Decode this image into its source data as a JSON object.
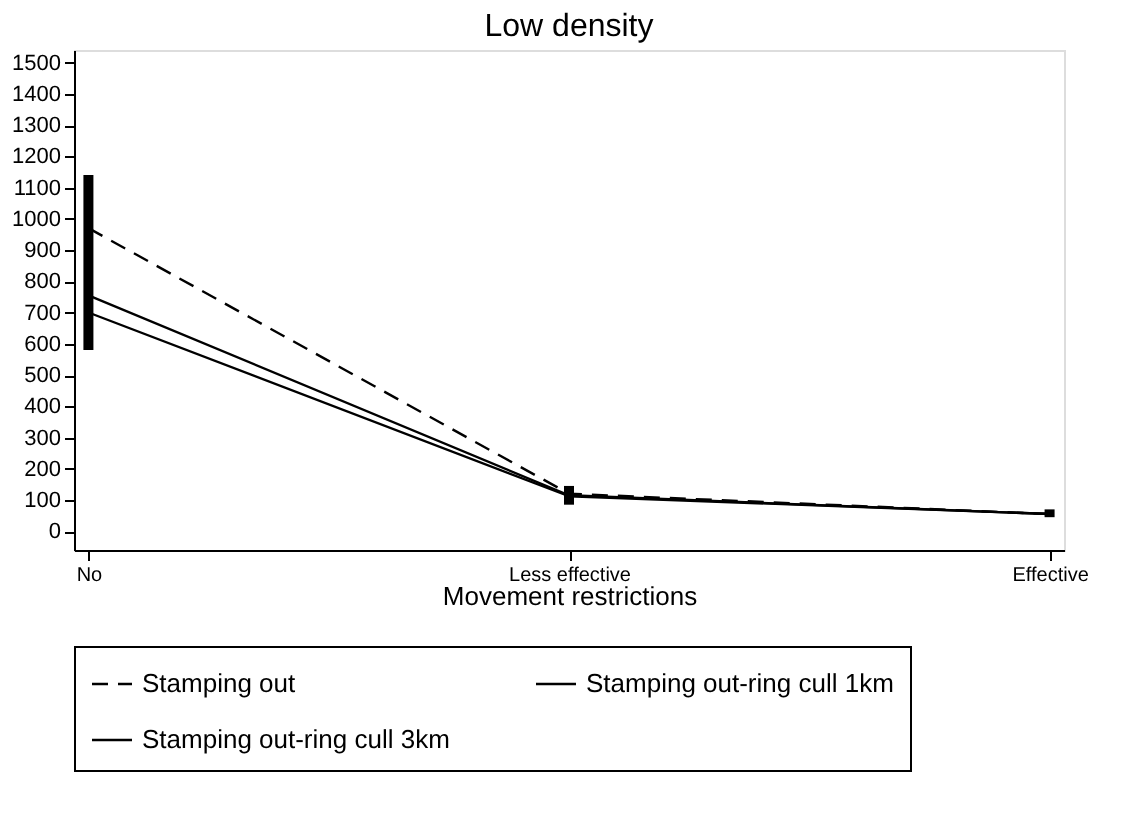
{
  "chart_data": {
    "type": "line",
    "title": "Low density",
    "xlabel": "Movement restrictions",
    "categories": [
      "No",
      "Less effective",
      "Effective"
    ],
    "ylim": [
      -60,
      1540
    ],
    "yticks": [
      0,
      100,
      200,
      300,
      400,
      500,
      600,
      700,
      800,
      900,
      1000,
      1100,
      1200,
      1300,
      1400,
      1500
    ],
    "grid": false,
    "legend": "bottom",
    "marker": "none",
    "series": [
      {
        "name": "Stamping out",
        "color": "#000000",
        "line_style": "dashed",
        "values": [
          970,
          120,
          55
        ]
      },
      {
        "name": "Stamping out-ring cull 1km",
        "color": "#000000",
        "line_style": "solid",
        "values": [
          700,
          112,
          55
        ]
      },
      {
        "name": "Stamping out-ring cull 3km",
        "color": "#000000",
        "line_style": "solid",
        "values": [
          755,
          115,
          55
        ],
        "errors": [
          [
            580,
            1140
          ],
          [
            85,
            145
          ],
          [
            45,
            70
          ]
        ]
      }
    ]
  }
}
